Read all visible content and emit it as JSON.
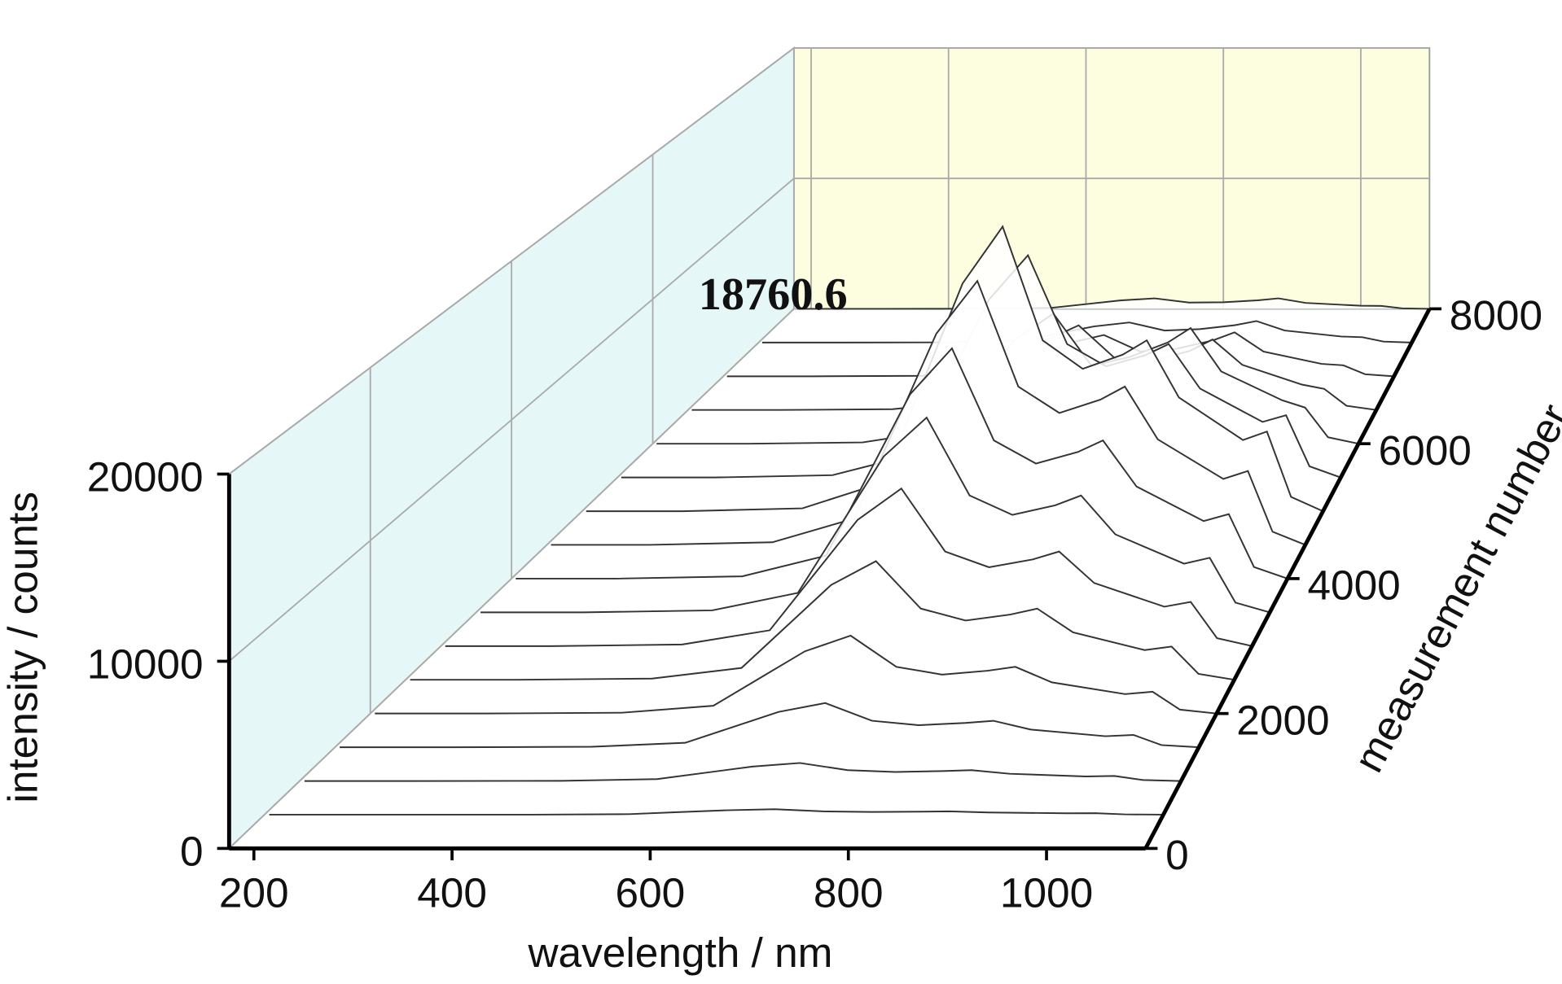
{
  "chart_data": {
    "type": "waterfall",
    "annotation": "18760.6",
    "x_label": "wavelength / nm",
    "y_label": "intensity / counts",
    "z_label": "measurement number",
    "xlim": [
      175,
      1100
    ],
    "xticks": [
      200,
      400,
      600,
      800,
      1000
    ],
    "ylim": [
      0,
      20000
    ],
    "yticks": [
      0,
      10000,
      20000
    ],
    "zlim": [
      0,
      8000
    ],
    "zticks": [
      0,
      2000,
      4000,
      6000,
      8000
    ],
    "grid": true,
    "line_color": "#333333",
    "back_wall_color": "#fdfde0",
    "side_wall_color": "#e6f7f7",
    "x": [
      180,
      300,
      450,
      550,
      600,
      650,
      700,
      750,
      800,
      850,
      880,
      920,
      1000,
      1030,
      1060,
      1100
    ],
    "series": [
      {
        "z": 0,
        "values": [
          0,
          0,
          0,
          0,
          0,
          0,
          0,
          0,
          0,
          0,
          0,
          0,
          0,
          0,
          0,
          0
        ]
      },
      {
        "z": 500,
        "values": [
          0,
          0,
          3,
          30,
          135,
          240,
          300,
          180,
          150,
          165,
          180,
          120,
          75,
          84,
          15,
          0
        ]
      },
      {
        "z": 1000,
        "values": [
          0,
          0,
          10,
          100,
          450,
          800,
          1000,
          600,
          500,
          550,
          600,
          400,
          250,
          280,
          50,
          0
        ]
      },
      {
        "z": 1500,
        "values": [
          0,
          0,
          25,
          250,
          1125,
          2000,
          2500,
          1500,
          1250,
          1375,
          1500,
          1000,
          625,
          700,
          125,
          0
        ]
      },
      {
        "z": 2000,
        "values": [
          0,
          0,
          45,
          450,
          2025,
          3600,
          4500,
          2700,
          2250,
          2475,
          2700,
          1800,
          1125,
          1260,
          225,
          0
        ]
      },
      {
        "z": 2500,
        "values": [
          0,
          0,
          70,
          700,
          3150,
          5600,
          7000,
          4200,
          3500,
          3850,
          4200,
          2800,
          1750,
          1960,
          350,
          0
        ]
      },
      {
        "z": 3000,
        "values": [
          0,
          0,
          95,
          950,
          4275,
          7600,
          9500,
          5700,
          4750,
          5225,
          5700,
          3800,
          2375,
          2660,
          475,
          0
        ]
      },
      {
        "z": 3500,
        "values": [
          0,
          0,
          120,
          1200,
          5400,
          9600,
          12000,
          7200,
          6000,
          6600,
          7200,
          4800,
          3000,
          3360,
          600,
          0
        ]
      },
      {
        "z": 4000,
        "values": [
          0,
          0,
          145,
          1450,
          6525,
          11600,
          14500,
          8700,
          7250,
          7975,
          8700,
          5800,
          3625,
          4060,
          725,
          0
        ]
      },
      {
        "z": 4500,
        "values": [
          0,
          0,
          170,
          1700,
          7650,
          13600,
          17000,
          10200,
          8500,
          9350,
          10200,
          6800,
          4250,
          4760,
          850,
          0
        ]
      },
      {
        "z": 5000,
        "values": [
          0,
          0,
          190,
          1880,
          8440,
          15010,
          18760.6,
          11260,
          9380,
          10320,
          11260,
          7500,
          4690,
          5250,
          940,
          0
        ]
      },
      {
        "z": 5500,
        "values": [
          0,
          0,
          150,
          1500,
          6750,
          12000,
          15000,
          9000,
          7500,
          8250,
          9000,
          6000,
          3750,
          4200,
          750,
          0
        ]
      },
      {
        "z": 6000,
        "values": [
          0,
          0,
          90,
          900,
          4050,
          7200,
          9000,
          5400,
          6000,
          7000,
          8000,
          5000,
          3000,
          2500,
          450,
          0
        ]
      },
      {
        "z": 6500,
        "values": [
          0,
          0,
          60,
          600,
          2700,
          4800,
          6000,
          3600,
          3500,
          4200,
          5000,
          3200,
          1800,
          1500,
          300,
          0
        ]
      },
      {
        "z": 7000,
        "values": [
          0,
          0,
          30,
          300,
          1350,
          2400,
          3000,
          1800,
          2000,
          2600,
          3200,
          1800,
          900,
          800,
          150,
          0
        ]
      },
      {
        "z": 7500,
        "values": [
          0,
          0,
          15,
          150,
          700,
          1200,
          1500,
          900,
          1000,
          1300,
          1600,
          900,
          450,
          400,
          75,
          0
        ]
      },
      {
        "z": 8000,
        "values": [
          0,
          0,
          8,
          80,
          360,
          640,
          800,
          480,
          500,
          650,
          800,
          450,
          240,
          220,
          40,
          0
        ]
      }
    ]
  }
}
